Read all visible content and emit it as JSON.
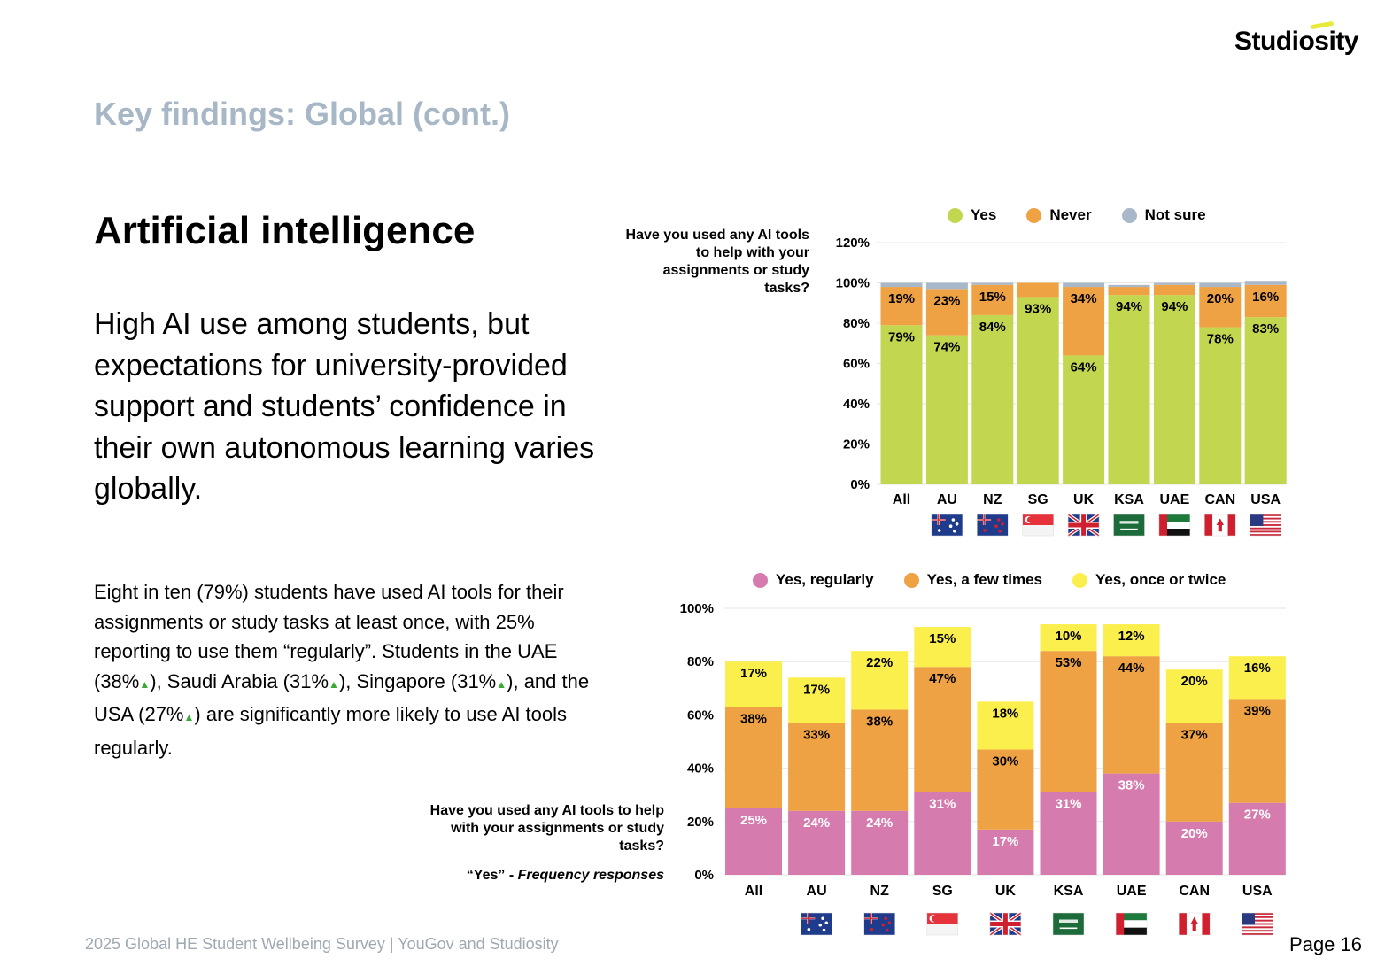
{
  "brand": {
    "name": "Studiosity"
  },
  "page": {
    "section_title": "Key findings: Global (cont.)",
    "heading": "Artificial intelligence",
    "lead": "High AI use among students, but expectations for university-provided support and students’ confidence in their own autonomous learning varies globally.",
    "body_parts": [
      "Eight in ten (79%) students have used AI tools for their assignments or study tasks at least once, with 25% reporting to use them “regularly”. Students in the UAE (38%",
      "), Saudi Arabia (31%",
      "), Singapore (31%",
      "), and the USA (27%",
      ") are significantly more likely to use AI tools regularly."
    ],
    "up_marker": "▲",
    "footer": "2025 Global HE Student Wellbeing Survey   |   YouGov and Studiosity",
    "page_number": "Page 16"
  },
  "colors": {
    "yes": "#c3d64f",
    "never": "#eea244",
    "not_sure": "#a9b8c9",
    "regularly": "#d67bad",
    "few_times": "#eea244",
    "once_twice": "#fbef4d"
  },
  "chart_data": [
    {
      "type": "bar",
      "stacked": true,
      "title": "Have you used any AI tools to help with your assignments or study tasks?",
      "categories": [
        "All",
        "AU",
        "NZ",
        "SG",
        "UK",
        "KSA",
        "UAE",
        "CAN",
        "USA"
      ],
      "flags": [
        "",
        "AU",
        "NZ",
        "SG",
        "UK",
        "KSA",
        "UAE",
        "CAN",
        "USA"
      ],
      "series": [
        {
          "name": "Yes",
          "color_key": "yes",
          "values": [
            79,
            74,
            84,
            93,
            64,
            94,
            94,
            78,
            83
          ],
          "labels": [
            "79%",
            "74%",
            "84%",
            "93%",
            "64%",
            "94%",
            "94%",
            "78%",
            "83%"
          ]
        },
        {
          "name": "Never",
          "color_key": "never",
          "values": [
            19,
            23,
            15,
            7,
            34,
            4,
            5,
            20,
            16
          ],
          "labels": [
            "19%",
            "23%",
            "15%",
            "",
            "34%",
            "",
            "",
            "20%",
            "16%"
          ]
        },
        {
          "name": "Not sure",
          "color_key": "not_sure",
          "values": [
            2,
            3,
            1,
            0,
            2,
            1,
            1,
            2,
            2
          ],
          "labels": [
            "",
            "",
            "",
            "",
            "",
            "",
            "",
            "",
            ""
          ]
        }
      ],
      "ylim": [
        0,
        120
      ],
      "yticks": [
        0,
        20,
        40,
        60,
        80,
        100,
        120
      ],
      "ytick_labels": [
        "0%",
        "20%",
        "40%",
        "60%",
        "80%",
        "100%",
        "120%"
      ],
      "legend": "top"
    },
    {
      "type": "bar",
      "stacked": true,
      "title": "Have you used any AI tools to help with your assignments or study tasks?",
      "subtitle_plain": "“Yes” - ",
      "subtitle_italic": "Frequency responses",
      "categories": [
        "All",
        "AU",
        "NZ",
        "SG",
        "UK",
        "KSA",
        "UAE",
        "CAN",
        "USA"
      ],
      "flags": [
        "AU",
        "NZ",
        "SG",
        "UK",
        "KSA",
        "UAE",
        "CAN",
        "USA"
      ],
      "series": [
        {
          "name": "Yes, regularly",
          "color_key": "regularly",
          "values": [
            25,
            24,
            24,
            31,
            17,
            31,
            38,
            20,
            27
          ],
          "labels": [
            "25%",
            "24%",
            "24%",
            "31%",
            "17%",
            "31%",
            "38%",
            "20%",
            "27%"
          ]
        },
        {
          "name": "Yes, a few times",
          "color_key": "few_times",
          "values": [
            38,
            33,
            38,
            47,
            30,
            53,
            44,
            37,
            39
          ],
          "labels": [
            "38%",
            "33%",
            "38%",
            "47%",
            "30%",
            "53%",
            "44%",
            "37%",
            "39%"
          ]
        },
        {
          "name": "Yes, once or twice",
          "color_key": "once_twice",
          "values": [
            17,
            17,
            22,
            15,
            18,
            10,
            12,
            20,
            16
          ],
          "labels": [
            "17%",
            "17%",
            "22%",
            "15%",
            "18%",
            "10%",
            "12%",
            "20%",
            "16%"
          ]
        }
      ],
      "ylim": [
        0,
        100
      ],
      "yticks": [
        0,
        20,
        40,
        60,
        80,
        100
      ],
      "ytick_labels": [
        "0%",
        "20%",
        "40%",
        "60%",
        "80%",
        "100%"
      ],
      "legend": "top"
    }
  ]
}
